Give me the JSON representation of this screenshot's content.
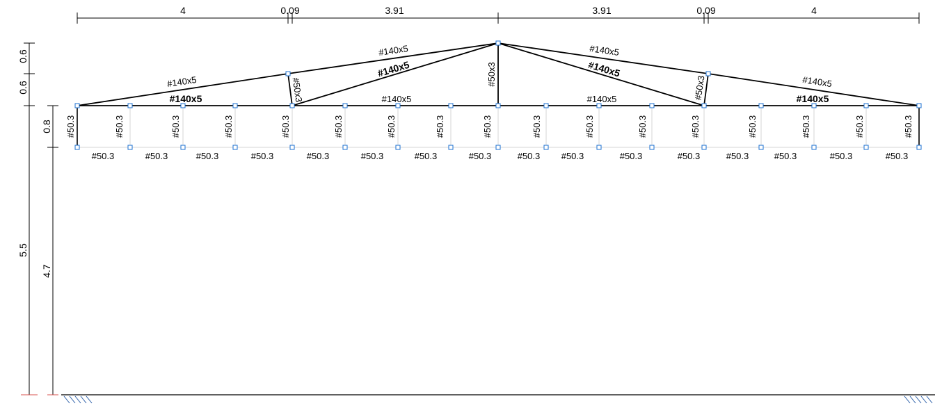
{
  "top_dimensions": [
    "4",
    "0.09",
    "3.91",
    "3.91",
    "0.09",
    "4"
  ],
  "left_dimensions": {
    "upper_a": "0.6",
    "upper_b": "0.6",
    "truss_depth": "0.8",
    "column_height": "4.7",
    "total_height": "5.5"
  },
  "labels": {
    "rafter_upper": "#140x5",
    "rafter_lower": "#140x5",
    "diagonal": "#140x5",
    "bottom_chord": "#140x5",
    "short_strut": "#50x3",
    "king_post": "#50x3",
    "sub_element": "#50.3"
  },
  "colors": {
    "structure": "#000000",
    "light_members": "#d6d6d6",
    "node": "#1a6fd1",
    "support_hatch": "#2b5ea8",
    "marker": "#d9534f"
  }
}
